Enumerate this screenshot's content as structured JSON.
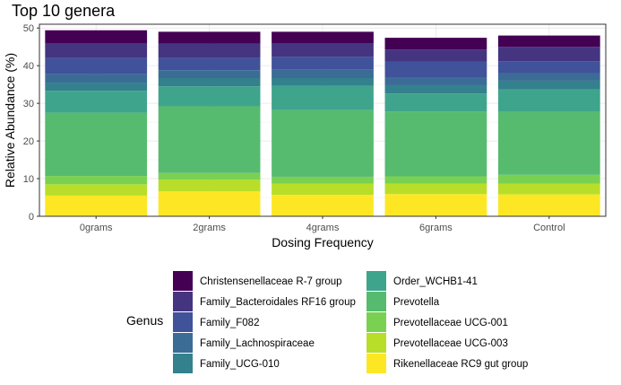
{
  "chart_data": {
    "type": "bar",
    "stacked": true,
    "title": "Top 10 genera",
    "xlabel": "Dosing Frequency",
    "ylabel": "Relative Abundance (%)",
    "ylim": [
      0,
      51
    ],
    "yticks": [
      0,
      10,
      20,
      30,
      40,
      50
    ],
    "grid": true,
    "categories": [
      "0grams",
      "2grams",
      "4grams",
      "6grams",
      "Control"
    ],
    "legend_title": "Genus",
    "legend_position": "bottom",
    "series": [
      {
        "name": "Rikenellaceae RC9 gut group",
        "color": "#FDE725",
        "values": [
          5.5,
          6.6,
          5.7,
          5.9,
          5.8
        ]
      },
      {
        "name": "Prevotellaceae UCG-003",
        "color": "#B8DE29",
        "values": [
          3.0,
          3.1,
          3.0,
          2.8,
          2.9
        ]
      },
      {
        "name": "Prevotellaceae UCG-001",
        "color": "#7AD151",
        "values": [
          2.2,
          1.8,
          1.8,
          1.9,
          2.3
        ]
      },
      {
        "name": "Prevotella",
        "color": "#56BB6F",
        "values": [
          16.8,
          17.7,
          17.7,
          17.2,
          16.7
        ]
      },
      {
        "name": "Order_WCHB1-41",
        "color": "#3FA48C",
        "values": [
          5.8,
          5.3,
          6.4,
          4.8,
          6.0
        ]
      },
      {
        "name": "Family_UCG-010",
        "color": "#33818D",
        "values": [
          2.2,
          2.2,
          2.1,
          2.2,
          2.3
        ]
      },
      {
        "name": "Family_Lachnospiraceae",
        "color": "#3B6C96",
        "values": [
          2.3,
          2.1,
          2.2,
          2.0,
          2.0
        ]
      },
      {
        "name": "Family_F082",
        "color": "#40529A",
        "values": [
          4.2,
          3.2,
          3.5,
          4.3,
          3.2
        ]
      },
      {
        "name": "Family_Bacteroidales RF16 group",
        "color": "#453480",
        "values": [
          3.9,
          3.8,
          3.5,
          3.2,
          3.8
        ]
      },
      {
        "name": "Christensenellaceae R-7 group",
        "color": "#440154",
        "values": [
          3.5,
          3.2,
          3.1,
          3.1,
          3.0
        ]
      }
    ],
    "legend_order": [
      "Christensenellaceae R-7 group",
      "Family_Bacteroidales RF16 group",
      "Family_F082",
      "Family_Lachnospiraceae",
      "Family_UCG-010",
      "Order_WCHB1-41",
      "Prevotella",
      "Prevotellaceae UCG-001",
      "Prevotellaceae UCG-003",
      "Rikenellaceae RC9 gut group"
    ]
  }
}
